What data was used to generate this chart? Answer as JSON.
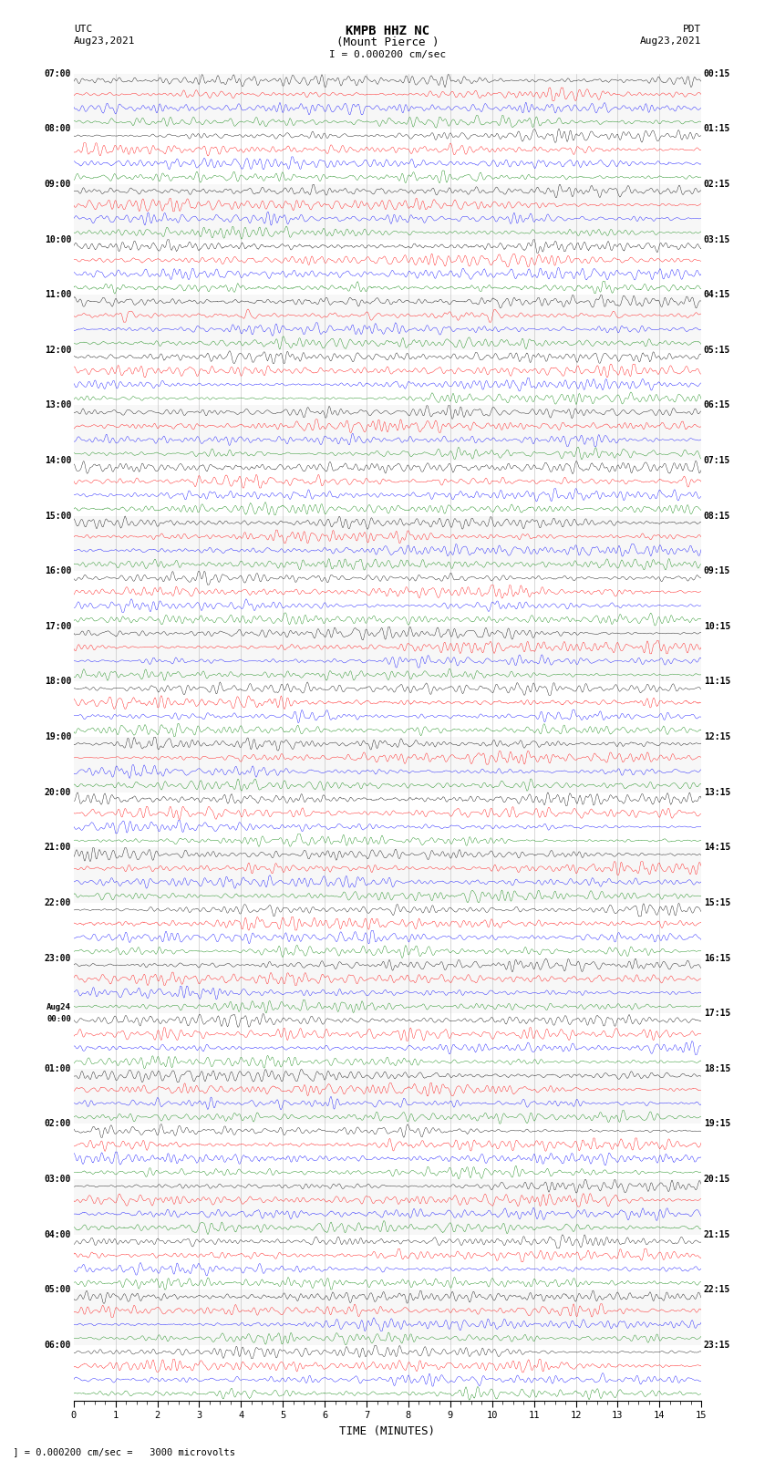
{
  "title_line1": "KMPB HHZ NC",
  "title_line2": "(Mount Pierce )",
  "scale_label": "= 0.000200 cm/sec",
  "left_header_line1": "UTC",
  "left_header_line2": "Aug23,2021",
  "right_header_line1": "PDT",
  "right_header_line2": "Aug23,2021",
  "bottom_label": "TIME (MINUTES)",
  "bottom_note": " ] = 0.000200 cm/sec =   3000 microvolts",
  "xlabel_ticks": [
    0,
    1,
    2,
    3,
    4,
    5,
    6,
    7,
    8,
    9,
    10,
    11,
    12,
    13,
    14,
    15
  ],
  "colors": [
    "black",
    "red",
    "blue",
    "green"
  ],
  "fig_width": 8.5,
  "fig_height": 16.13,
  "left_time_labels": [
    "07:00",
    "08:00",
    "09:00",
    "10:00",
    "11:00",
    "12:00",
    "13:00",
    "14:00",
    "15:00",
    "16:00",
    "17:00",
    "18:00",
    "19:00",
    "20:00",
    "21:00",
    "22:00",
    "23:00",
    "Aug24\n00:00",
    "01:00",
    "02:00",
    "03:00",
    "04:00",
    "05:00",
    "06:00"
  ],
  "right_time_labels": [
    "00:15",
    "01:15",
    "02:15",
    "03:15",
    "04:15",
    "05:15",
    "06:15",
    "07:15",
    "08:15",
    "09:15",
    "10:15",
    "11:15",
    "12:15",
    "13:15",
    "14:15",
    "15:15",
    "16:15",
    "17:15",
    "18:15",
    "19:15",
    "20:15",
    "21:15",
    "22:15",
    "23:15"
  ]
}
